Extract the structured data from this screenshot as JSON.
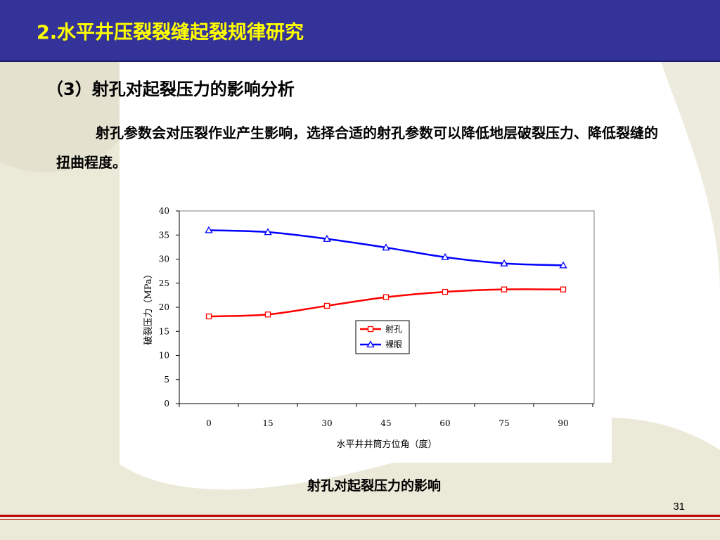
{
  "header": {
    "title": "2.水平井压裂裂缝起裂规律研究"
  },
  "section": {
    "heading": "（3）射孔对起裂压力的影响分析",
    "body": "射孔参数会对压裂作业产生影响，选择合适的射孔参数可以降低地层破裂压力、降低裂缝的扭曲程度。"
  },
  "caption": "射孔对起裂压力的影响",
  "page_number": "31",
  "colors": {
    "header_bg": "#333399",
    "title": "#ffff00",
    "footer_line": "#c00000",
    "series_perforation": "#ff0000",
    "series_open_hole": "#0000ff"
  },
  "chart_data": {
    "type": "line",
    "xlabel": "水平井井筒方位角（度）",
    "ylabel": "破裂压力（MPa）",
    "x": [
      0,
      15,
      30,
      45,
      60,
      75,
      90
    ],
    "ylim": [
      0,
      40
    ],
    "yticks": [
      0,
      5,
      10,
      15,
      20,
      25,
      30,
      35,
      40
    ],
    "grid": false,
    "legend": "center",
    "series": [
      {
        "name": "射孔",
        "marker": "square",
        "color": "#ff0000",
        "values": [
          18.1,
          18.5,
          20.3,
          22.1,
          23.2,
          23.7,
          23.7
        ]
      },
      {
        "name": "裸眼",
        "marker": "triangle",
        "color": "#0000ff",
        "values": [
          36.0,
          35.6,
          34.2,
          32.4,
          30.4,
          29.1,
          28.7
        ]
      }
    ]
  }
}
